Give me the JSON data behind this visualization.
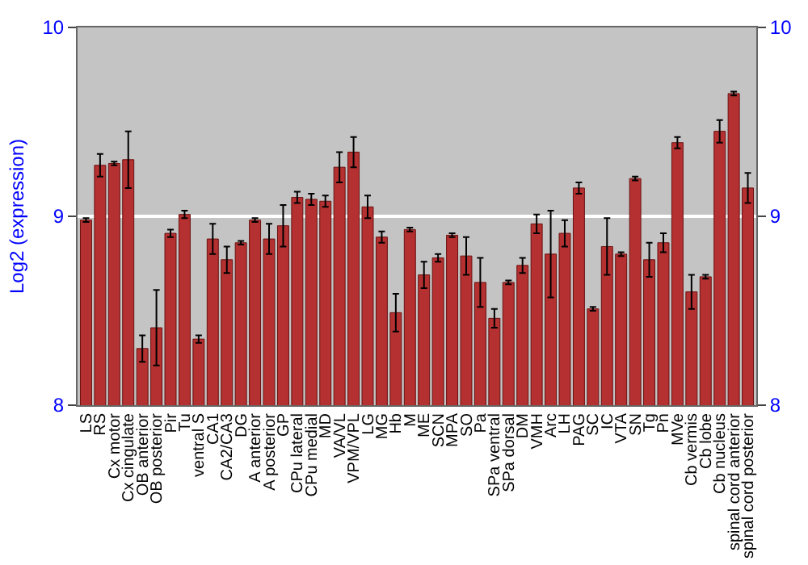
{
  "chart_data": {
    "type": "bar",
    "ylabel": "Log2 (expression)",
    "categories": [
      "LS",
      "RS",
      "Cx motor",
      "Cx cingulate",
      "OB anterior",
      "OB posterior",
      "Pir",
      "Tu",
      "ventral S",
      "CA1",
      "CA2/CA3",
      "DG",
      "A anterior",
      "A posterior",
      "GP",
      "CPu lateral",
      "CPu medial",
      "MD",
      "VA/VL",
      "VPM/VPL",
      "LG",
      "MG",
      "Hb",
      "M",
      "ME",
      "SCN",
      "MPA",
      "SO",
      "Pa",
      "SPa ventral",
      "SPa dorsal",
      "DM",
      "VMH",
      "Arc",
      "LH",
      "PAG",
      "SC",
      "IC",
      "VTA",
      "SN",
      "Tg",
      "Pn",
      "MVe",
      "Cb vermis",
      "Cb lobe",
      "Cb nucleus",
      "spinal cord anterior",
      "spinal cord posterior"
    ],
    "values": [
      8.98,
      9.27,
      9.28,
      9.3,
      8.3,
      8.41,
      8.91,
      9.01,
      8.35,
      8.88,
      8.77,
      8.86,
      8.98,
      8.88,
      8.95,
      9.1,
      9.09,
      9.08,
      9.26,
      9.34,
      9.05,
      8.89,
      8.49,
      8.93,
      8.69,
      8.78,
      8.9,
      8.79,
      8.65,
      8.46,
      8.65,
      8.74,
      8.96,
      8.8,
      8.91,
      9.15,
      8.51,
      8.84,
      8.8,
      9.2,
      8.77,
      8.86,
      9.39,
      8.6,
      8.68,
      9.45,
      9.65,
      9.15
    ],
    "errors": [
      0.01,
      0.06,
      0.01,
      0.15,
      0.07,
      0.2,
      0.02,
      0.02,
      0.02,
      0.08,
      0.07,
      0.01,
      0.01,
      0.08,
      0.11,
      0.03,
      0.03,
      0.03,
      0.08,
      0.08,
      0.06,
      0.03,
      0.1,
      0.01,
      0.07,
      0.02,
      0.01,
      0.1,
      0.13,
      0.05,
      0.01,
      0.04,
      0.05,
      0.23,
      0.07,
      0.03,
      0.01,
      0.15,
      0.01,
      0.01,
      0.09,
      0.05,
      0.03,
      0.09,
      0.01,
      0.06,
      0.01,
      0.08
    ],
    "color": "#b53030",
    "ylim": [
      8,
      10
    ],
    "yticks": [
      8,
      9,
      10
    ],
    "y2lim": [
      8,
      10
    ],
    "y2ticks": [
      8,
      9,
      10
    ],
    "grid": "y"
  }
}
